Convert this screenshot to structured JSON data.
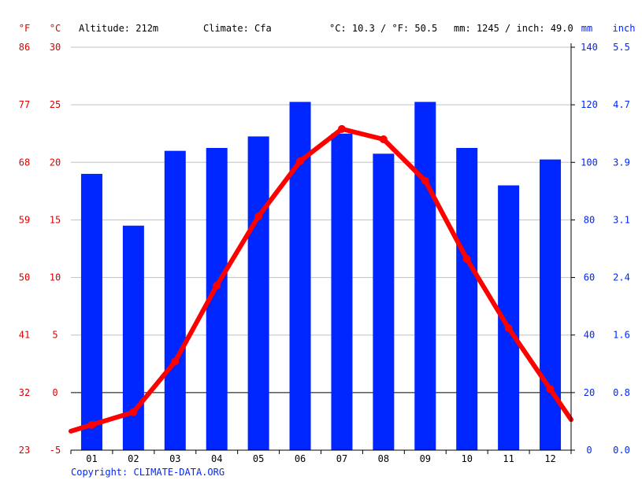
{
  "header": {
    "f_unit": "°F",
    "c_unit": "°C",
    "altitude": "Altitude: 212m",
    "climate": "Climate: Cfa",
    "temp_avg": "°C: 10.3 / °F: 50.5",
    "precip_total": "mm: 1245 / inch: 49.0",
    "mm_unit": "mm",
    "inch_unit": "inch"
  },
  "copyright": "Copyright: CLIMATE-DATA.ORG",
  "colors": {
    "temperature": "#ff0000",
    "precipitation": "#0026ff",
    "grid": "#c0c0c0",
    "axis": "#000000",
    "left_labels": "#e00000",
    "right_labels": "#0026ff",
    "copyright": "#0026ff"
  },
  "chart_data": {
    "type": "bar+line",
    "categories": [
      "01",
      "02",
      "03",
      "04",
      "05",
      "06",
      "07",
      "08",
      "09",
      "10",
      "11",
      "12"
    ],
    "precipitation_mm": [
      96,
      78,
      104,
      105,
      109,
      121,
      110,
      103,
      121,
      105,
      92,
      101
    ],
    "temperature_c": [
      -2.8,
      -1.7,
      2.7,
      9.3,
      15.3,
      20.1,
      22.9,
      22.0,
      18.4,
      11.6,
      5.6,
      0.3
    ],
    "y_left_c": {
      "min": -5,
      "max": 30,
      "ticks": [
        30,
        25,
        20,
        15,
        10,
        5,
        0,
        -5
      ]
    },
    "y_left_f_ticks": [
      86,
      77,
      68,
      59,
      50,
      41,
      32,
      23
    ],
    "y_right_mm": {
      "min": 0,
      "max": 140,
      "ticks": [
        140,
        120,
        100,
        80,
        60,
        40,
        20,
        0
      ]
    },
    "y_right_inch_ticks": [
      "5.5",
      "4.7",
      "3.9",
      "3.1",
      "2.4",
      "1.6",
      "0.8",
      "0.0"
    ],
    "grid": true
  }
}
